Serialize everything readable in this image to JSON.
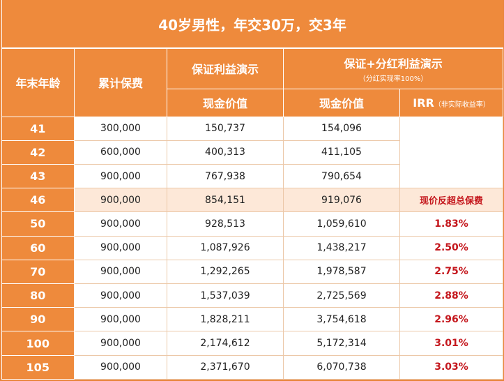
{
  "title": "40岁男性，年交30万，交3年",
  "headers": {
    "age": "年末年龄",
    "premium": "累计保费",
    "guaranteed": "保证利益演示",
    "dividend": "保证+分红利益演示",
    "dividend_sub": "（分红实现率100%）",
    "cash_value_1": "现金价值",
    "cash_value_2": "现金价值",
    "irr": "IRR",
    "irr_note": "（非实际收益率）"
  },
  "rows": [
    {
      "age": "41",
      "premium": "300,000",
      "guaranteed": "150,737",
      "dividend": "154,096",
      "irr": ""
    },
    {
      "age": "42",
      "premium": "600,000",
      "guaranteed": "400,313",
      "dividend": "411,105",
      "irr": ""
    },
    {
      "age": "43",
      "premium": "900,000",
      "guaranteed": "767,938",
      "dividend": "790,654",
      "irr": ""
    },
    {
      "age": "46",
      "premium": "900,000",
      "guaranteed": "854,151",
      "dividend": "919,076",
      "irr": "现价反超总保费"
    },
    {
      "age": "50",
      "premium": "900,000",
      "guaranteed": "928,513",
      "dividend": "1,059,610",
      "irr": "1.83%"
    },
    {
      "age": "60",
      "premium": "900,000",
      "guaranteed": "1,087,926",
      "dividend": "1,438,217",
      "irr": "2.50%"
    },
    {
      "age": "70",
      "premium": "900,000",
      "guaranteed": "1,292,265",
      "dividend": "1,978,587",
      "irr": "2.75%"
    },
    {
      "age": "80",
      "premium": "900,000",
      "guaranteed": "1,537,039",
      "dividend": "2,725,569",
      "irr": "2.88%"
    },
    {
      "age": "90",
      "premium": "900,000",
      "guaranteed": "1,828,211",
      "dividend": "3,754,618",
      "irr": "2.96%"
    },
    {
      "age": "100",
      "premium": "900,000",
      "guaranteed": "2,174,612",
      "dividend": "5,172,314",
      "irr": "3.01%"
    },
    {
      "age": "105",
      "premium": "900,000",
      "guaranteed": "2,371,670",
      "dividend": "6,070,738",
      "irr": "3.03%"
    }
  ],
  "colors": {
    "header_orange": "#ee8a3c",
    "highlight_row": "#fde8d8",
    "irr_red": "#c4161c"
  }
}
